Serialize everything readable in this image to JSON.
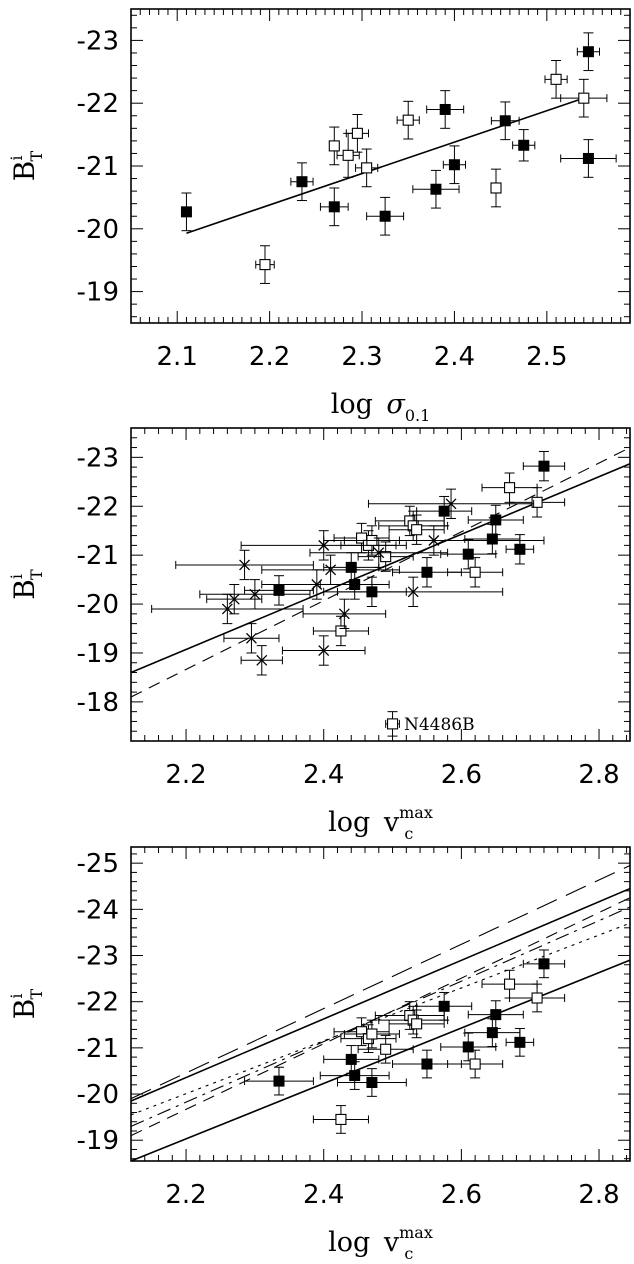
{
  "chart_data": [
    {
      "type": "scatter",
      "x_label": {
        "base": "log",
        "symbol": "σ",
        "sub": "0.1"
      },
      "y_label": {
        "base": "B",
        "sup": "i",
        "sub": "T"
      },
      "xlim": [
        2.05,
        2.59
      ],
      "ylim": [
        -18.5,
        -23.5
      ],
      "x_ticks": [
        {
          "v": 2.1,
          "t": "2.1"
        },
        {
          "v": 2.2,
          "t": "2.2"
        },
        {
          "v": 2.3,
          "t": "2.3"
        },
        {
          "v": 2.4,
          "t": "2.4"
        },
        {
          "v": 2.5,
          "t": "2.5"
        }
      ],
      "y_ticks": [
        {
          "v": -19,
          "t": "-19"
        },
        {
          "v": -20,
          "t": "-20"
        },
        {
          "v": -21,
          "t": "-21"
        },
        {
          "v": -22,
          "t": "-22"
        },
        {
          "v": -23,
          "t": "-23"
        }
      ],
      "x_minor_step": 0.01,
      "y_minor_step": 0.2,
      "series": [
        {
          "marker": "filled-square",
          "points": [
            {
              "x": 2.11,
              "y": -20.27,
              "xerr": 0.005,
              "yerr": 0.3
            },
            {
              "x": 2.235,
              "y": -20.75,
              "xerr": 0.012,
              "yerr": 0.3
            },
            {
              "x": 2.27,
              "y": -20.35,
              "xerr": 0.015,
              "yerr": 0.3
            },
            {
              "x": 2.325,
              "y": -20.2,
              "xerr": 0.02,
              "yerr": 0.3
            },
            {
              "x": 2.38,
              "y": -20.63,
              "xerr": 0.025,
              "yerr": 0.3
            },
            {
              "x": 2.39,
              "y": -21.9,
              "xerr": 0.02,
              "yerr": 0.3
            },
            {
              "x": 2.4,
              "y": -21.02,
              "xerr": 0.012,
              "yerr": 0.3
            },
            {
              "x": 2.455,
              "y": -21.72,
              "xerr": 0.015,
              "yerr": 0.3
            },
            {
              "x": 2.475,
              "y": -21.33,
              "xerr": 0.012,
              "yerr": 0.25
            },
            {
              "x": 2.545,
              "y": -21.12,
              "xerr": 0.03,
              "yerr": 0.3
            },
            {
              "x": 2.545,
              "y": -22.82,
              "xerr": 0.012,
              "yerr": 0.3
            }
          ]
        },
        {
          "marker": "open-square",
          "points": [
            {
              "x": 2.195,
              "y": -19.43,
              "xerr": 0.01,
              "yerr": 0.3
            },
            {
              "x": 2.27,
              "y": -21.32,
              "xerr": 0.005,
              "yerr": 0.3
            },
            {
              "x": 2.285,
              "y": -21.17,
              "xerr": 0.012,
              "yerr": 0.35
            },
            {
              "x": 2.295,
              "y": -21.52,
              "xerr": 0.012,
              "yerr": 0.3
            },
            {
              "x": 2.305,
              "y": -20.97,
              "xerr": 0.012,
              "yerr": 0.3
            },
            {
              "x": 2.35,
              "y": -21.73,
              "xerr": 0.012,
              "yerr": 0.3
            },
            {
              "x": 2.445,
              "y": -20.65,
              "xerr": 0.005,
              "yerr": 0.3
            },
            {
              "x": 2.51,
              "y": -22.38,
              "xerr": 0.012,
              "yerr": 0.3
            },
            {
              "x": 2.54,
              "y": -22.08,
              "xerr": 0.025,
              "yerr": 0.3
            }
          ]
        }
      ],
      "lines": [
        {
          "style": "solid",
          "x1": 2.11,
          "y1": -19.93,
          "x2": 2.54,
          "y2": -22.08
        }
      ],
      "annotations": []
    },
    {
      "type": "scatter",
      "x_label": {
        "base": "log",
        "symbol": "v",
        "sub": "c",
        "sup": "max"
      },
      "y_label": {
        "base": "B",
        "sup": "i",
        "sub": "T"
      },
      "xlim": [
        2.12,
        2.845
      ],
      "ylim": [
        -17.2,
        -23.6
      ],
      "x_ticks": [
        {
          "v": 2.2,
          "t": "2.2"
        },
        {
          "v": 2.4,
          "t": "2.4"
        },
        {
          "v": 2.6,
          "t": "2.6"
        },
        {
          "v": 2.8,
          "t": "2.8"
        }
      ],
      "y_ticks": [
        {
          "v": -18,
          "t": "-18"
        },
        {
          "v": -19,
          "t": "-19"
        },
        {
          "v": -20,
          "t": "-20"
        },
        {
          "v": -21,
          "t": "-21"
        },
        {
          "v": -22,
          "t": "-22"
        },
        {
          "v": -23,
          "t": "-23"
        }
      ],
      "x_minor_step": 0.02,
      "y_minor_step": 0.2,
      "series": [
        {
          "marker": "filled-square",
          "points": [
            {
              "x": 2.335,
              "y": -20.28,
              "xerr": 0.05,
              "yerr": 0.3
            },
            {
              "x": 2.44,
              "y": -20.75,
              "xerr": 0.04,
              "yerr": 0.3
            },
            {
              "x": 2.445,
              "y": -20.4,
              "xerr": 0.05,
              "yerr": 0.3
            },
            {
              "x": 2.47,
              "y": -20.25,
              "xerr": 0.05,
              "yerr": 0.3
            },
            {
              "x": 2.55,
              "y": -20.65,
              "xerr": 0.05,
              "yerr": 0.3
            },
            {
              "x": 2.575,
              "y": -21.9,
              "xerr": 0.04,
              "yerr": 0.3
            },
            {
              "x": 2.61,
              "y": -21.02,
              "xerr": 0.04,
              "yerr": 0.3
            },
            {
              "x": 2.645,
              "y": -21.33,
              "xerr": 0.04,
              "yerr": 0.3
            },
            {
              "x": 2.65,
              "y": -21.72,
              "xerr": 0.04,
              "yerr": 0.3
            },
            {
              "x": 2.685,
              "y": -21.12,
              "xerr": 0.02,
              "yerr": 0.3
            },
            {
              "x": 2.72,
              "y": -22.82,
              "xerr": 0.03,
              "yerr": 0.3
            }
          ]
        },
        {
          "marker": "open-square",
          "points": [
            {
              "x": 2.425,
              "y": -19.45,
              "xerr": 0.04,
              "yerr": 0.3
            },
            {
              "x": 2.455,
              "y": -21.35,
              "xerr": 0.04,
              "yerr": 0.3
            },
            {
              "x": 2.465,
              "y": -21.2,
              "xerr": 0.04,
              "yerr": 0.3
            },
            {
              "x": 2.47,
              "y": -21.3,
              "xerr": 0.04,
              "yerr": 0.3
            },
            {
              "x": 2.49,
              "y": -20.97,
              "xerr": 0.04,
              "yerr": 0.3
            },
            {
              "x": 2.525,
              "y": -21.7,
              "xerr": 0.05,
              "yerr": 0.3
            },
            {
              "x": 2.53,
              "y": -21.6,
              "xerr": 0.05,
              "yerr": 0.3
            },
            {
              "x": 2.535,
              "y": -21.52,
              "xerr": 0.04,
              "yerr": 0.3
            },
            {
              "x": 2.62,
              "y": -20.65,
              "xerr": 0.04,
              "yerr": 0.3
            },
            {
              "x": 2.67,
              "y": -22.38,
              "xerr": 0.04,
              "yerr": 0.3
            },
            {
              "x": 2.71,
              "y": -22.08,
              "xerr": 0.04,
              "yerr": 0.3
            },
            {
              "x": 2.5,
              "y": -17.55,
              "xerr": 0.01,
              "yerr": 0.25
            }
          ]
        },
        {
          "marker": "cross",
          "points": [
            {
              "x": 2.26,
              "y": -19.9,
              "xerr": 0.11,
              "yerr": 0.3
            },
            {
              "x": 2.27,
              "y": -20.1,
              "xerr": 0.04,
              "yerr": 0.3
            },
            {
              "x": 2.285,
              "y": -20.8,
              "xerr": 0.1,
              "yerr": 0.3
            },
            {
              "x": 2.295,
              "y": -19.3,
              "xerr": 0.04,
              "yerr": 0.3
            },
            {
              "x": 2.3,
              "y": -20.2,
              "xerr": 0.08,
              "yerr": 0.3
            },
            {
              "x": 2.31,
              "y": -18.85,
              "xerr": 0.03,
              "yerr": 0.3
            },
            {
              "x": 2.39,
              "y": -20.4,
              "xerr": 0.08,
              "yerr": 0.3
            },
            {
              "x": 2.4,
              "y": -21.2,
              "xerr": 0.12,
              "yerr": 0.3
            },
            {
              "x": 2.4,
              "y": -19.05,
              "xerr": 0.06,
              "yerr": 0.3
            },
            {
              "x": 2.41,
              "y": -20.7,
              "xerr": 0.1,
              "yerr": 0.3
            },
            {
              "x": 2.43,
              "y": -19.8,
              "xerr": 0.06,
              "yerr": 0.3
            },
            {
              "x": 2.48,
              "y": -21.05,
              "xerr": 0.1,
              "yerr": 0.3
            },
            {
              "x": 2.53,
              "y": -20.25,
              "xerr": 0.13,
              "yerr": 0.3
            },
            {
              "x": 2.56,
              "y": -21.3,
              "xerr": 0.16,
              "yerr": 0.3
            },
            {
              "x": 2.585,
              "y": -22.05,
              "xerr": 0.12,
              "yerr": 0.3
            }
          ]
        }
      ],
      "lines": [
        {
          "style": "solid",
          "x1": 2.12,
          "y1": -18.6,
          "x2": 2.845,
          "y2": -22.87
        },
        {
          "style": "dashed",
          "x1": 2.12,
          "y1": -18.1,
          "x2": 2.845,
          "y2": -23.2
        }
      ],
      "annotations": [
        {
          "x": 2.505,
          "y": -17.55,
          "text": "N4486B"
        }
      ]
    },
    {
      "type": "scatter",
      "x_label": {
        "base": "log",
        "symbol": "v",
        "sub": "c",
        "sup": "max"
      },
      "y_label": {
        "base": "B",
        "sup": "i",
        "sub": "T"
      },
      "xlim": [
        2.12,
        2.845
      ],
      "ylim": [
        -18.55,
        -25.35
      ],
      "x_ticks": [
        {
          "v": 2.2,
          "t": "2.2"
        },
        {
          "v": 2.4,
          "t": "2.4"
        },
        {
          "v": 2.6,
          "t": "2.6"
        },
        {
          "v": 2.8,
          "t": "2.8"
        }
      ],
      "y_ticks": [
        {
          "v": -19,
          "t": "-19"
        },
        {
          "v": -20,
          "t": "-20"
        },
        {
          "v": -21,
          "t": "-21"
        },
        {
          "v": -22,
          "t": "-22"
        },
        {
          "v": -23,
          "t": "-23"
        },
        {
          "v": -24,
          "t": "-24"
        },
        {
          "v": -25,
          "t": "-25"
        }
      ],
      "x_minor_step": 0.02,
      "y_minor_step": 0.2,
      "series": [
        {
          "marker": "filled-square",
          "points": [
            {
              "x": 2.335,
              "y": -20.28,
              "xerr": 0.05,
              "yerr": 0.3
            },
            {
              "x": 2.44,
              "y": -20.75,
              "xerr": 0.04,
              "yerr": 0.3
            },
            {
              "x": 2.445,
              "y": -20.4,
              "xerr": 0.05,
              "yerr": 0.3
            },
            {
              "x": 2.47,
              "y": -20.25,
              "xerr": 0.05,
              "yerr": 0.3
            },
            {
              "x": 2.55,
              "y": -20.65,
              "xerr": 0.05,
              "yerr": 0.3
            },
            {
              "x": 2.575,
              "y": -21.9,
              "xerr": 0.04,
              "yerr": 0.3
            },
            {
              "x": 2.61,
              "y": -21.02,
              "xerr": 0.04,
              "yerr": 0.3
            },
            {
              "x": 2.645,
              "y": -21.33,
              "xerr": 0.04,
              "yerr": 0.3
            },
            {
              "x": 2.65,
              "y": -21.72,
              "xerr": 0.04,
              "yerr": 0.3
            },
            {
              "x": 2.685,
              "y": -21.12,
              "xerr": 0.02,
              "yerr": 0.3
            },
            {
              "x": 2.72,
              "y": -22.82,
              "xerr": 0.03,
              "yerr": 0.3
            }
          ]
        },
        {
          "marker": "open-square",
          "points": [
            {
              "x": 2.425,
              "y": -19.45,
              "xerr": 0.04,
              "yerr": 0.3
            },
            {
              "x": 2.455,
              "y": -21.35,
              "xerr": 0.04,
              "yerr": 0.3
            },
            {
              "x": 2.465,
              "y": -21.2,
              "xerr": 0.04,
              "yerr": 0.3
            },
            {
              "x": 2.47,
              "y": -21.3,
              "xerr": 0.04,
              "yerr": 0.3
            },
            {
              "x": 2.49,
              "y": -20.97,
              "xerr": 0.04,
              "yerr": 0.3
            },
            {
              "x": 2.525,
              "y": -21.7,
              "xerr": 0.05,
              "yerr": 0.3
            },
            {
              "x": 2.53,
              "y": -21.6,
              "xerr": 0.05,
              "yerr": 0.3
            },
            {
              "x": 2.535,
              "y": -21.52,
              "xerr": 0.04,
              "yerr": 0.3
            },
            {
              "x": 2.62,
              "y": -20.65,
              "xerr": 0.04,
              "yerr": 0.3
            },
            {
              "x": 2.67,
              "y": -22.38,
              "xerr": 0.04,
              "yerr": 0.3
            },
            {
              "x": 2.71,
              "y": -22.08,
              "xerr": 0.04,
              "yerr": 0.3
            }
          ]
        }
      ],
      "lines": [
        {
          "style": "solid",
          "x1": 2.12,
          "y1": -18.55,
          "x2": 2.845,
          "y2": -22.9
        },
        {
          "style": "solid",
          "x1": 2.12,
          "y1": -19.85,
          "x2": 2.845,
          "y2": -24.45
        },
        {
          "style": "long-dashed",
          "x1": 2.12,
          "y1": -19.9,
          "x2": 2.845,
          "y2": -24.95
        },
        {
          "style": "dashed",
          "x1": 2.12,
          "y1": -19.1,
          "x2": 2.845,
          "y2": -24.25
        },
        {
          "style": "dash-dot",
          "x1": 2.12,
          "y1": -19.3,
          "x2": 2.845,
          "y2": -24.05
        },
        {
          "style": "dotted",
          "x1": 2.12,
          "y1": -19.55,
          "x2": 2.845,
          "y2": -23.7
        }
      ],
      "annotations": []
    }
  ]
}
